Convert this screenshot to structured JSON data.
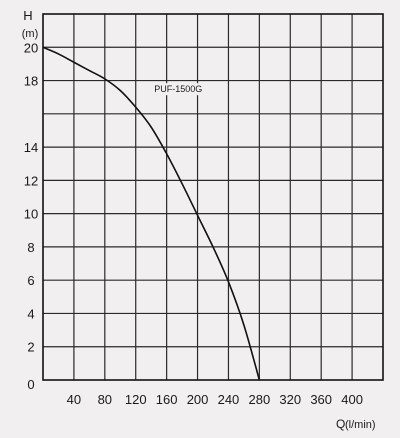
{
  "chart_data": {
    "type": "line",
    "ylabel": "H",
    "ylabel_unit": "(m)",
    "xlabel": "Q",
    "xlabel_unit": "(l/min)",
    "xlim": [
      0,
      440
    ],
    "ylim": [
      0,
      22
    ],
    "x_ticks": [
      40,
      80,
      120,
      160,
      200,
      240,
      280,
      320,
      360,
      400
    ],
    "y_ticks": [
      2,
      4,
      6,
      8,
      10,
      12,
      14,
      18,
      20
    ],
    "origin_label": "0",
    "grid": true,
    "series": [
      {
        "name": "PUF-1500G",
        "color": "#111111",
        "points": [
          [
            0,
            20.0
          ],
          [
            20,
            19.6
          ],
          [
            40,
            19.1
          ],
          [
            60,
            18.6
          ],
          [
            80,
            18.1
          ],
          [
            100,
            17.4
          ],
          [
            120,
            16.4
          ],
          [
            140,
            15.2
          ],
          [
            160,
            13.6
          ],
          [
            180,
            11.8
          ],
          [
            200,
            9.9
          ],
          [
            220,
            8.0
          ],
          [
            240,
            5.9
          ],
          [
            260,
            3.3
          ],
          [
            280,
            0.0
          ]
        ]
      }
    ]
  }
}
